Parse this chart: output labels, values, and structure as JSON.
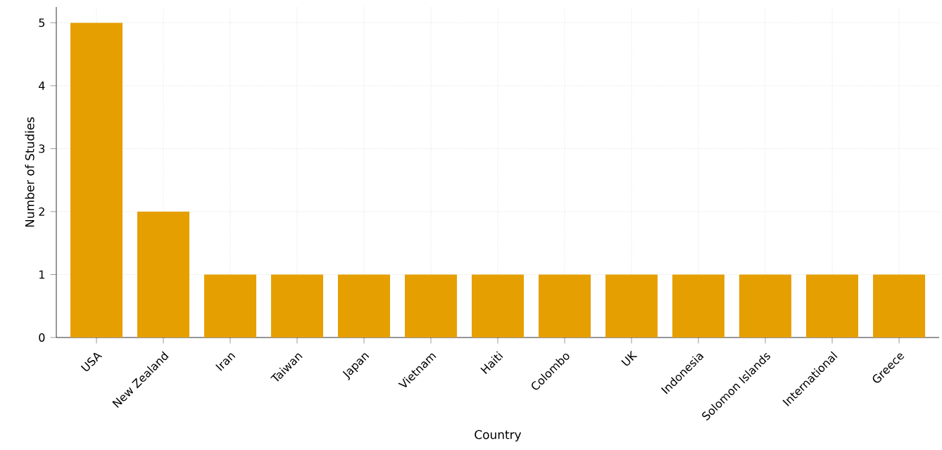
{
  "chart_data": {
    "type": "bar",
    "xlabel": "Country",
    "ylabel": "Number of Studies",
    "categories": [
      "USA",
      "New Zealand",
      "Iran",
      "Taiwan",
      "Japan",
      "Vietnam",
      "Haiti",
      "Colombo",
      "UK",
      "Indonesia",
      "Solomon Islands",
      "International",
      "Greece"
    ],
    "values": [
      5,
      2,
      1,
      1,
      1,
      1,
      1,
      1,
      1,
      1,
      1,
      1,
      1
    ],
    "color": "#e69f00",
    "ylim": [
      0,
      5.25
    ],
    "yticks": [
      0,
      1,
      2,
      3,
      4,
      5
    ],
    "grid": true
  }
}
